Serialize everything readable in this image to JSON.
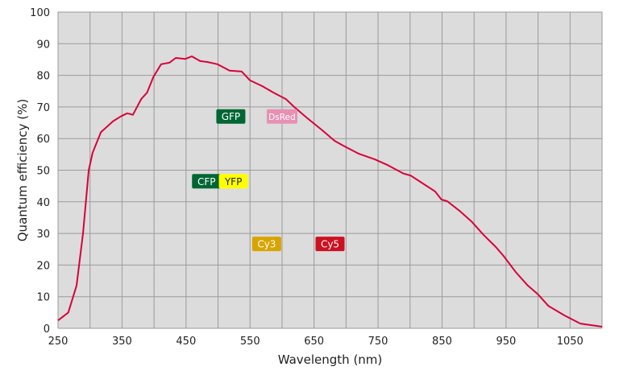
{
  "chart_data": {
    "type": "line",
    "title": "",
    "xlabel": "Wavelength (nm)",
    "ylabel": "Quantum efficiency (%)",
    "xlim": [
      250,
      1100
    ],
    "ylim": [
      0,
      100
    ],
    "x_ticks": [
      250,
      350,
      450,
      550,
      650,
      750,
      850,
      950,
      1050
    ],
    "x_grid_step": 50,
    "y_ticks": [
      0,
      10,
      20,
      30,
      40,
      50,
      60,
      70,
      80,
      90,
      100
    ],
    "grid": true,
    "background": "#dcdcdc",
    "series": [
      {
        "color": "#d9003a",
        "x": [
          250,
          266,
          279,
          289,
          298,
          304,
          317,
          336,
          348,
          358,
          367,
          380,
          389,
          399,
          411,
          424,
          434,
          449,
          459,
          472,
          484,
          499,
          518,
          537,
          550,
          569,
          587,
          606,
          619,
          638,
          663,
          682,
          695,
          720,
          745,
          764,
          789,
          801,
          820,
          839,
          849,
          858,
          877,
          896,
          915,
          934,
          946,
          965,
          984,
          1000,
          1016,
          1041,
          1066,
          1100
        ],
        "y": [
          2.5,
          5,
          13.5,
          30,
          50,
          55.5,
          62,
          65.5,
          67,
          68,
          67.5,
          72.5,
          74.5,
          79.5,
          83.5,
          84,
          85.5,
          85.2,
          86,
          84.5,
          84.2,
          83.5,
          81.5,
          81.2,
          78.4,
          76.6,
          74.5,
          72.5,
          70,
          66.7,
          62.6,
          59.3,
          57.8,
          55.2,
          53.4,
          51.7,
          49,
          48.3,
          45.8,
          43.3,
          40.7,
          40.2,
          37.2,
          33.8,
          29.5,
          25.7,
          22.9,
          17.8,
          13.5,
          10.7,
          7.1,
          4.1,
          1.5,
          0.5
        ]
      }
    ],
    "annotations": [
      {
        "text": "GFP",
        "x": 520,
        "y": 67,
        "bg": "#006633",
        "fg": "#ffffff"
      },
      {
        "text": "DsRed",
        "x": 600,
        "y": 67,
        "bg": "#e890b4",
        "fg": "#ffffff"
      },
      {
        "text": "CFP",
        "x": 482,
        "y": 46.5,
        "bg": "#006633",
        "fg": "#ffffff"
      },
      {
        "text": "YFP",
        "x": 524,
        "y": 46.5,
        "bg": "#ffff00",
        "fg": "#222222"
      },
      {
        "text": "Cy3",
        "x": 576,
        "y": 26.7,
        "bg": "#d9a400",
        "fg": "#ffffff"
      },
      {
        "text": "Cy5",
        "x": 675,
        "y": 26.7,
        "bg": "#cc1122",
        "fg": "#ffffff"
      }
    ]
  }
}
